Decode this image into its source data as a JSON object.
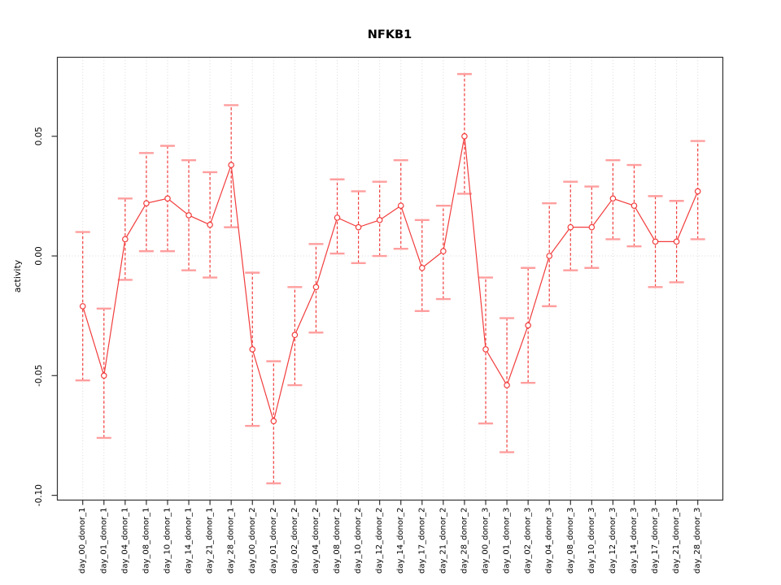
{
  "page": {
    "title": "NFKB1"
  },
  "chart_data": {
    "type": "line",
    "title": "NFKB1",
    "xlabel": "",
    "ylabel": "activity",
    "legend": "none",
    "categories": [
      "day_00_donor_1",
      "day_01_donor_1",
      "day_04_donor_1",
      "day_08_donor_1",
      "day_10_donor_1",
      "day_14_donor_1",
      "day_21_donor_1",
      "day_28_donor_1",
      "day_00_donor_2",
      "day_01_donor_2",
      "day_02_donor_2",
      "day_04_donor_2",
      "day_08_donor_2",
      "day_10_donor_2",
      "day_12_donor_2",
      "day_14_donor_2",
      "day_17_donor_2",
      "day_21_donor_2",
      "day_28_donor_2",
      "day_00_donor_3",
      "day_01_donor_3",
      "day_02_donor_3",
      "day_04_donor_3",
      "day_08_donor_3",
      "day_10_donor_3",
      "day_12_donor_3",
      "day_14_donor_3",
      "day_17_donor_3",
      "day_21_donor_3",
      "day_28_donor_3"
    ],
    "series": [
      {
        "name": "NFKB1 activity",
        "values": [
          -0.021,
          -0.05,
          0.007,
          0.022,
          0.024,
          0.017,
          0.013,
          0.038,
          -0.039,
          -0.069,
          -0.033,
          -0.013,
          0.016,
          0.012,
          0.015,
          0.021,
          -0.005,
          0.002,
          0.05,
          -0.039,
          -0.054,
          -0.029,
          0.0,
          0.012,
          0.012,
          0.024,
          0.021,
          0.006,
          0.006,
          0.027
        ],
        "ci_high": [
          0.01,
          -0.022,
          0.024,
          0.043,
          0.046,
          0.04,
          0.035,
          0.063,
          -0.007,
          -0.044,
          -0.013,
          0.005,
          0.032,
          0.027,
          0.031,
          0.04,
          0.015,
          0.021,
          0.076,
          -0.009,
          -0.026,
          -0.005,
          0.022,
          0.031,
          0.029,
          0.04,
          0.038,
          0.025,
          0.023,
          0.048
        ],
        "ci_low": [
          -0.052,
          -0.076,
          -0.01,
          0.002,
          0.002,
          -0.006,
          -0.009,
          0.012,
          -0.071,
          -0.095,
          -0.054,
          -0.032,
          0.001,
          -0.003,
          0.0,
          0.003,
          -0.023,
          -0.018,
          0.026,
          -0.07,
          -0.082,
          -0.053,
          -0.021,
          -0.006,
          -0.005,
          0.007,
          0.004,
          -0.013,
          -0.011,
          0.007
        ]
      }
    ],
    "ylim": [
      -0.102,
      0.083
    ],
    "yticks": [
      0.05,
      0,
      -0.05,
      -0.1
    ],
    "ytick_labels": [
      "0.05",
      "0.00",
      "-0.05",
      "-0.10"
    ],
    "grid": {
      "vertical": "dotted line at every category",
      "horizontal_at_zero": true
    },
    "colors": {
      "series": "#f23d3d",
      "error_cap": "#ff9e9e",
      "grid": "#d9d9d9",
      "axis": "#333333",
      "text": "#000000",
      "background": "#ffffff"
    }
  }
}
